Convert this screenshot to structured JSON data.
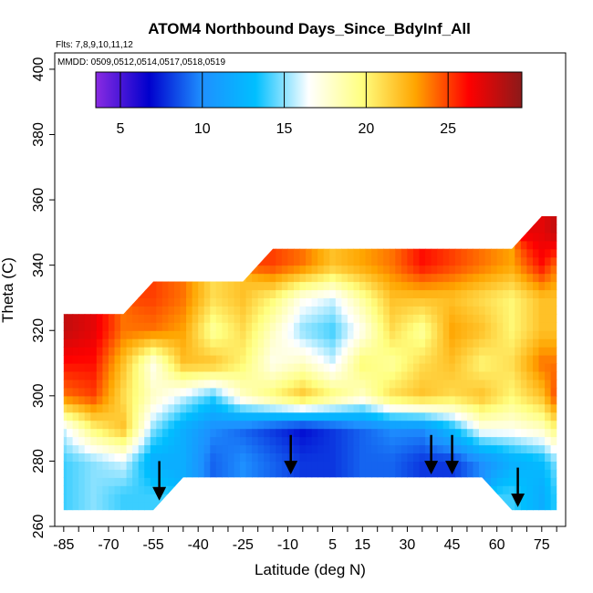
{
  "chart_data": {
    "type": "heatmap",
    "title": "ATOM4 Northbound Days_Since_BdyInf_All",
    "flights_note": "Flts: 7,8,9,10,11,12",
    "dates_note": "MMDD: 0509,0512,0514,0517,0518,0519",
    "xlabel": "Latitude (deg N)",
    "ylabel": "Theta (C)",
    "xlim": [
      -88,
      83
    ],
    "ylim": [
      260,
      405
    ],
    "x_ticks": [
      -85,
      -70,
      -55,
      -40,
      -25,
      -10,
      5,
      15,
      30,
      45,
      60,
      75
    ],
    "y_ticks": [
      260,
      280,
      300,
      320,
      340,
      360,
      380,
      400
    ],
    "colorbar": {
      "min": 3.5,
      "max": 29.5,
      "ticks": [
        5,
        10,
        15,
        20,
        25
      ],
      "colors": [
        "#8a2be2",
        "#0000cd",
        "#1e90ff",
        "#00bfff",
        "#ffffff",
        "#ffff80",
        "#ffa500",
        "#ff0000",
        "#8b1a1a"
      ]
    },
    "tropopause_arrows_lat": [
      -53,
      -9,
      38,
      45,
      67
    ],
    "value_grid": {
      "lats": [
        -85,
        -75,
        -65,
        -55,
        -45,
        -35,
        -25,
        -15,
        -5,
        5,
        15,
        25,
        35,
        45,
        55,
        65,
        75,
        80
      ],
      "thetas": [
        270,
        280,
        290,
        300,
        310,
        320,
        330,
        340,
        350
      ],
      "values": [
        [
          14,
          15,
          14,
          14,
          0,
          0,
          0,
          0,
          0,
          0,
          0,
          0,
          0,
          0,
          0,
          14,
          12,
          14
        ],
        [
          14,
          15,
          16,
          12,
          12,
          9,
          10,
          9,
          8,
          8,
          9,
          9,
          8,
          8,
          10,
          12,
          13,
          15
        ],
        [
          16,
          20,
          22,
          15,
          12,
          10,
          9,
          8,
          7,
          8,
          9,
          10,
          10,
          13,
          17,
          17,
          18,
          20
        ],
        [
          24,
          25,
          21,
          18,
          16,
          14,
          18,
          20,
          22,
          20,
          18,
          21,
          22,
          21,
          22,
          20,
          22,
          25
        ],
        [
          26,
          26,
          22,
          17,
          22,
          22,
          20,
          17,
          18,
          16,
          20,
          19,
          21,
          22,
          20,
          21,
          24,
          24
        ],
        [
          28,
          27,
          24,
          24,
          23,
          19,
          21,
          18,
          15,
          14,
          17,
          21,
          19,
          23,
          22,
          20,
          22,
          22
        ],
        [
          0,
          0,
          0,
          25,
          24,
          21,
          22,
          20,
          17,
          16,
          19,
          22,
          22,
          22,
          21,
          20,
          22,
          22
        ],
        [
          0,
          0,
          0,
          0,
          0,
          0,
          0,
          25,
          24,
          22,
          23,
          24,
          26,
          25,
          24,
          23,
          26,
          24
        ],
        [
          0,
          0,
          0,
          0,
          0,
          0,
          0,
          0,
          0,
          0,
          0,
          0,
          0,
          0,
          0,
          0,
          27,
          28
        ]
      ]
    }
  }
}
